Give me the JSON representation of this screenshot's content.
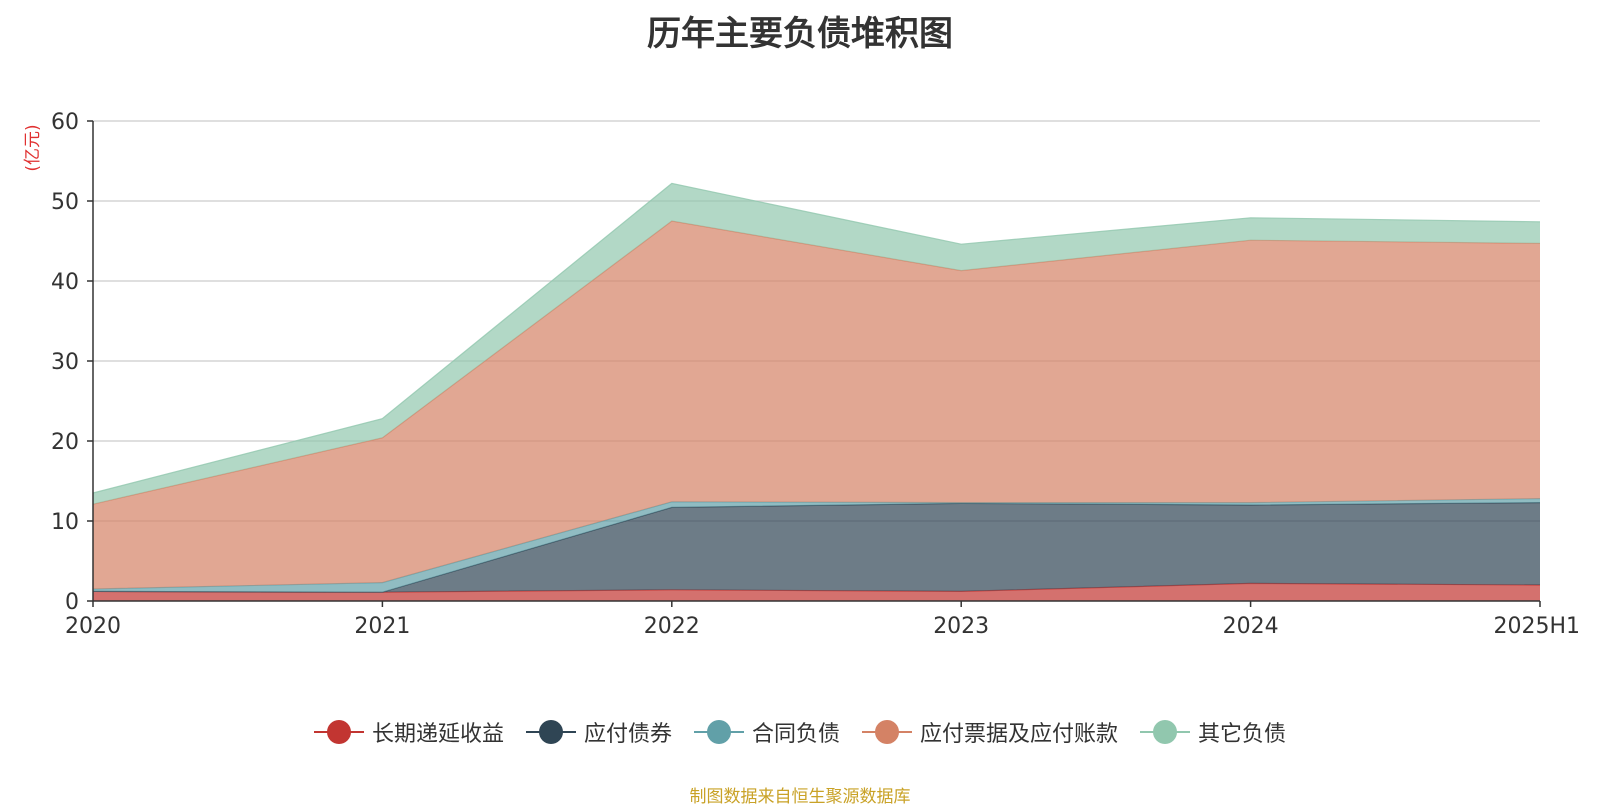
{
  "chart_data": {
    "type": "area",
    "stacked": true,
    "title": "历年主要负债堆积图",
    "unit_label": "(亿元)",
    "x": [
      "2020",
      "2021",
      "2022",
      "2023",
      "2024",
      "2025H1"
    ],
    "ylim": [
      0,
      60
    ],
    "yticks": [
      0,
      10,
      20,
      30,
      40,
      50,
      60
    ],
    "grid": true,
    "legend_position": "bottom",
    "series": [
      {
        "name": "长期递延收益",
        "color": "#c23531",
        "values": [
          1.2,
          1.1,
          1.4,
          1.2,
          2.2,
          2.0
        ]
      },
      {
        "name": "应付债券",
        "color": "#2f4554",
        "values": [
          0,
          0,
          10.3,
          11.0,
          9.8,
          10.3
        ]
      },
      {
        "name": "合同负债",
        "color": "#61a0a8",
        "values": [
          0.3,
          1.2,
          0.7,
          0.1,
          0.3,
          0.5
        ]
      },
      {
        "name": "应付票据及应付账款",
        "color": "#d48265",
        "values": [
          10.6,
          18.1,
          35.1,
          29.0,
          32.8,
          31.9
        ]
      },
      {
        "name": "其它负债",
        "color": "#91c7ae",
        "values": [
          1.4,
          2.4,
          4.7,
          3.3,
          2.8,
          2.7
        ]
      }
    ],
    "source_note": "制图数据来自恒生聚源数据库"
  }
}
